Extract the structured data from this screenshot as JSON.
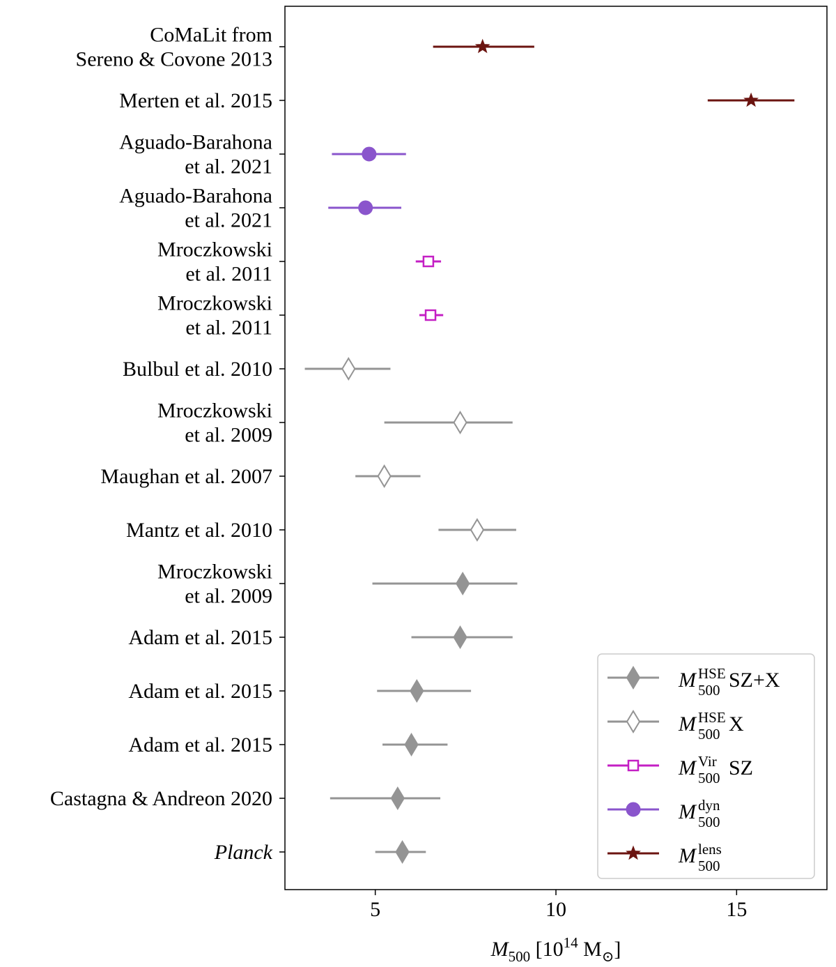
{
  "chart_data": {
    "type": "scatter",
    "title": "",
    "ylabel": "",
    "xlim": [
      2.5,
      17.5
    ],
    "xticks": [
      5,
      10,
      15
    ],
    "xlabel": {
      "symbol": "M",
      "subscript": "500",
      "unit_open": " [10",
      "unit_exp": "14",
      "unit_mass": " M",
      "unit_sun": "⊙",
      "unit_close": "]"
    },
    "series_styles": {
      "hse_szx": {
        "color": "#949494",
        "marker": "diamond-filled",
        "label_sup": "HSE",
        "label_tail": " SZ+X"
      },
      "hse_x": {
        "color": "#949494",
        "marker": "diamond-open",
        "label_sup": "HSE",
        "label_tail": " X"
      },
      "vir_sz": {
        "color": "#c41fc4",
        "marker": "square-open",
        "label_sup": "Vir",
        "label_tail": " SZ"
      },
      "dyn": {
        "color": "#8a55cc",
        "marker": "circle-filled",
        "label_sup": "dyn",
        "label_tail": ""
      },
      "lens": {
        "color": "#6b1410",
        "marker": "star-filled",
        "label_sup": "lens",
        "label_tail": ""
      }
    },
    "legend": {
      "placement": "lower right",
      "entries": [
        {
          "series": "hse_szx",
          "symbol": "M",
          "sub": "500"
        },
        {
          "series": "hse_x",
          "symbol": "M",
          "sub": "500"
        },
        {
          "series": "vir_sz",
          "symbol": "M",
          "sub": "500"
        },
        {
          "series": "dyn",
          "symbol": "M",
          "sub": "500"
        },
        {
          "series": "lens",
          "symbol": "M",
          "sub": "500"
        }
      ]
    },
    "points": [
      {
        "label": [
          "CoMaLit from",
          "Sereno & Covone 2013"
        ],
        "series": "lens",
        "value": 7.97,
        "low": 6.6,
        "high": 9.4
      },
      {
        "label": [
          "Merten et al. 2015"
        ],
        "series": "lens",
        "value": 15.4,
        "low": 14.2,
        "high": 16.6
      },
      {
        "label": [
          "Aguado-Barahona",
          "et al. 2021"
        ],
        "series": "dyn",
        "value": 4.83,
        "low": 3.8,
        "high": 5.85
      },
      {
        "label": [
          "Aguado-Barahona",
          "et al. 2021"
        ],
        "series": "dyn",
        "value": 4.73,
        "low": 3.7,
        "high": 5.72
      },
      {
        "label": [
          "Mroczkowski",
          "et al. 2011"
        ],
        "series": "vir_sz",
        "value": 6.47,
        "low": 6.12,
        "high": 6.82
      },
      {
        "label": [
          "Mroczkowski",
          "et al. 2011"
        ],
        "series": "vir_sz",
        "value": 6.53,
        "low": 6.22,
        "high": 6.88
      },
      {
        "label": [
          "Bulbul et al. 2010"
        ],
        "series": "hse_x",
        "value": 4.26,
        "low": 3.05,
        "high": 5.42
      },
      {
        "label": [
          "Mroczkowski",
          "et al. 2009"
        ],
        "series": "hse_x",
        "value": 7.35,
        "low": 5.25,
        "high": 8.8
      },
      {
        "label": [
          "Maughan et al. 2007"
        ],
        "series": "hse_x",
        "value": 5.25,
        "low": 4.45,
        "high": 6.25
      },
      {
        "label": [
          "Mantz et al. 2010"
        ],
        "series": "hse_x",
        "value": 7.82,
        "low": 6.75,
        "high": 8.9
      },
      {
        "label": [
          "Mroczkowski",
          "et al. 2009"
        ],
        "series": "hse_szx",
        "value": 7.42,
        "low": 4.92,
        "high": 8.93
      },
      {
        "label": [
          "Adam et al. 2015"
        ],
        "series": "hse_szx",
        "value": 7.35,
        "low": 6.0,
        "high": 8.8
      },
      {
        "label": [
          "Adam et al. 2015"
        ],
        "series": "hse_szx",
        "value": 6.15,
        "low": 5.05,
        "high": 7.65
      },
      {
        "label": [
          "Adam et al. 2015"
        ],
        "series": "hse_szx",
        "value": 6.0,
        "low": 5.2,
        "high": 7.0
      },
      {
        "label": [
          "Castagna & Andreon 2020"
        ],
        "series": "hse_szx",
        "value": 5.62,
        "low": 3.75,
        "high": 6.8
      },
      {
        "label": [
          "Planck"
        ],
        "label_italic": true,
        "series": "hse_szx",
        "value": 5.75,
        "low": 5.0,
        "high": 6.4
      }
    ]
  }
}
